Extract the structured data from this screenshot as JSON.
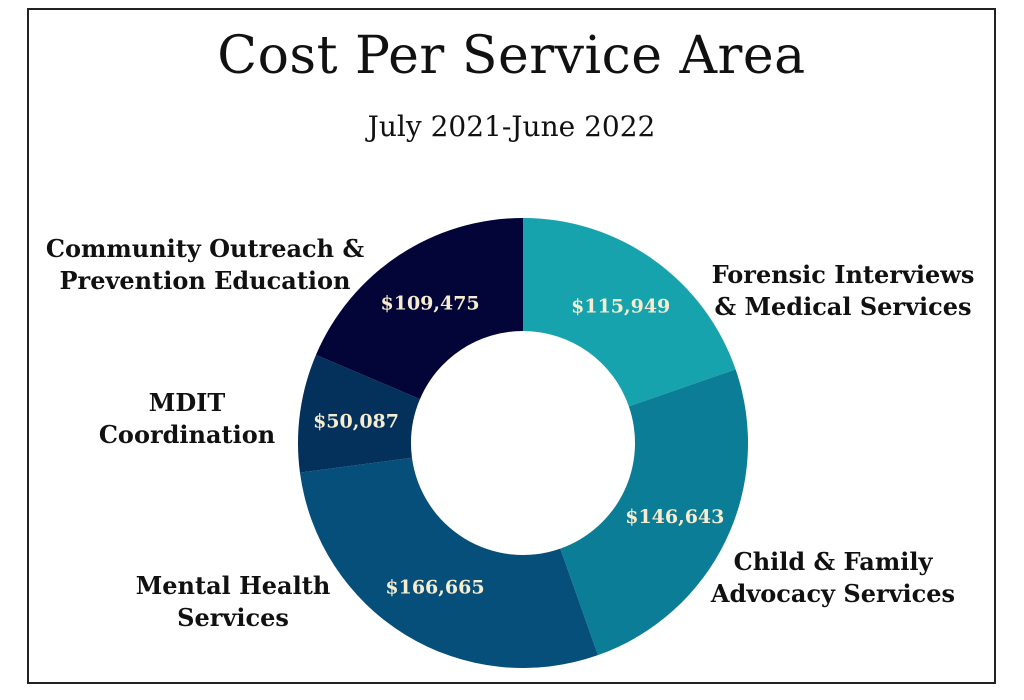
{
  "colors": {
    "background": "#ffffff",
    "border": "#222222",
    "value_label": "#f6ecd0",
    "category_label": "#111111"
  },
  "chart_data": {
    "type": "pie",
    "variant": "donut",
    "title": "Cost Per Service Area",
    "subtitle": "July 2021-June 2022",
    "categories": [
      "Forensic Interviews & Medical Services",
      "Child & Family Advocacy Services",
      "Mental Health Services",
      "MDIT Coordination",
      "Community Outreach & Prevention Education"
    ],
    "values": [
      115949,
      146643,
      166665,
      50087,
      109475
    ],
    "value_labels": [
      "$115,949",
      "$146,643",
      "$166,665",
      "$50,087",
      "$109,475"
    ],
    "colors": [
      "#17a3ad",
      "#0b7d96",
      "#064f7a",
      "#03315c",
      "#030538"
    ],
    "legend": "none (direct labels)"
  }
}
